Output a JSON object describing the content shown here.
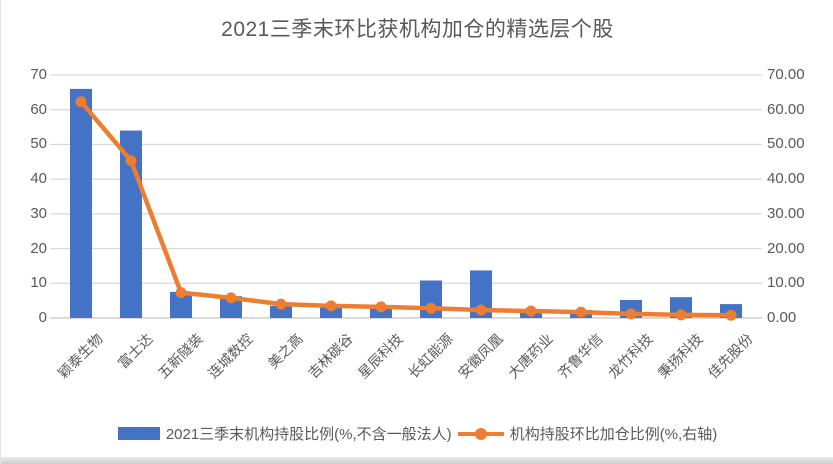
{
  "title": "2021三季末环比获机构加仓的精选层个股",
  "colors": {
    "bar_series": "#4472C4",
    "line_series": "#ED7D31",
    "gridline": "#D9D9D9",
    "axis_line": "#C3C3C3",
    "axis_text": "#595959",
    "title_text": "#595959"
  },
  "legend": {
    "bar_label": "2021三季末机构持股比例(%,不含一般法人)",
    "line_label": "机构持股环比加仓比例(%,右轴)"
  },
  "chart_data": {
    "type": "bar",
    "subtype": "combo-bar-line-dual-axis",
    "title": "2021三季末环比获机构加仓的精选层个股",
    "categories": [
      "颖泰生物",
      "富士达",
      "五新隧装",
      "连城数控",
      "美之高",
      "吉林碳谷",
      "星辰科技",
      "长虹能源",
      "安徽凤凰",
      "大唐药业",
      "齐鲁华信",
      "龙竹科技",
      "秉扬科技",
      "佳先股份"
    ],
    "series": [
      {
        "name": "2021三季末机构持股比例(%,不含一般法人)",
        "type": "bar",
        "axis": "left",
        "color": "#4472C4",
        "values": [
          66,
          54,
          7.5,
          6.3,
          3.5,
          3.3,
          3.4,
          10.8,
          13.7,
          2.2,
          2.3,
          5.2,
          6,
          4
        ]
      },
      {
        "name": "机构持股环比加仓比例(%,右轴)",
        "type": "line",
        "axis": "right",
        "color": "#ED7D31",
        "values": [
          62.3,
          45.3,
          7.3,
          5.8,
          4,
          3.5,
          3.2,
          2.8,
          2.3,
          2,
          1.7,
          1.2,
          0.9,
          0.8
        ]
      }
    ],
    "left_axis": {
      "min": 0,
      "max": 70,
      "step": 10,
      "tick_labels": [
        "0",
        "10",
        "20",
        "30",
        "40",
        "50",
        "60",
        "70"
      ]
    },
    "right_axis": {
      "min": 0,
      "max": 70,
      "step": 10,
      "tick_labels": [
        "0.00",
        "10.00",
        "20.00",
        "30.00",
        "40.00",
        "50.00",
        "60.00",
        "70.00"
      ]
    },
    "grid": true,
    "legend_position": "bottom"
  }
}
